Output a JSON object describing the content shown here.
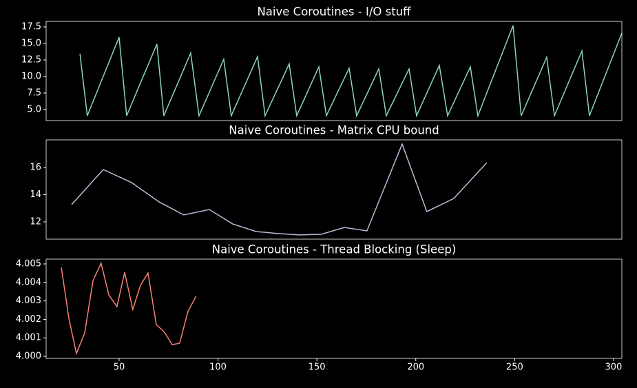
{
  "chart_data": [
    {
      "type": "line",
      "title": "Naive Coroutines - I/O stuff",
      "color": "#8dd3c7",
      "x": [
        30.2,
        33.9,
        50,
        53.8,
        69.1,
        72.6,
        86.2,
        90.4,
        102.9,
        106.7,
        120,
        123.8,
        136,
        139.8,
        151,
        154.8,
        166.3,
        170.1,
        181.3,
        185.1,
        196.6,
        200.4,
        211.9,
        216.1,
        227.6,
        231.4,
        249.2,
        253.3,
        266.2,
        270.1,
        284,
        287.8,
        304.2
      ],
      "values": [
        13.44,
        4.06,
        15.94,
        4.06,
        14.9,
        4.06,
        13.54,
        4.06,
        12.6,
        4.06,
        13.0,
        4.06,
        11.9,
        4.06,
        11.46,
        4.06,
        11.25,
        4.06,
        11.15,
        4.06,
        11.15,
        4.06,
        11.67,
        4.06,
        11.46,
        4.06,
        17.7,
        4.06,
        12.9,
        4.06,
        13.85,
        4.06,
        16.56
      ],
      "xlim": [
        13.1,
        304.2
      ],
      "ylim": [
        3.33,
        18.33
      ],
      "yticks": [
        {
          "value": 5,
          "label": "5.0"
        },
        {
          "value": 7.5,
          "label": "7.5"
        },
        {
          "value": 10,
          "label": "10.0"
        },
        {
          "value": 12.5,
          "label": "12.5"
        },
        {
          "value": 15,
          "label": "15.0"
        },
        {
          "value": 17.5,
          "label": "17.5"
        }
      ]
    },
    {
      "type": "line",
      "title": "Naive Coroutines - Matrix CPU bound",
      "color": "#bebada",
      "x": [
        26,
        42,
        56.3,
        70.2,
        82.7,
        95.6,
        107.4,
        119.3,
        130.4,
        141.2,
        152.4,
        163.9,
        175.3,
        193.1,
        205.6,
        219.2,
        235.9
      ],
      "values": [
        13.27,
        15.85,
        14.89,
        13.47,
        12.51,
        12.91,
        11.85,
        11.29,
        11.14,
        11.04,
        11.09,
        11.59,
        11.34,
        17.72,
        12.76,
        13.72,
        16.35
      ],
      "xlim": [
        13.1,
        304.2
      ],
      "ylim": [
        10.73,
        18.03
      ],
      "yticks": [
        12,
        14,
        16
      ]
    },
    {
      "type": "line",
      "title": "Naive Coroutines - Thread Blocking (Sleep)",
      "color": "#fa8072",
      "x": [
        20.8,
        24.6,
        28.4,
        32.6,
        36.8,
        40.9,
        44.8,
        48.9,
        52.8,
        56.9,
        60.8,
        64.6,
        68.8,
        72.9,
        76.8,
        80.6,
        84.8,
        88.9
      ],
      "values": [
        4.00481,
        4.00205,
        4.00015,
        4.00127,
        4.0041,
        4.00504,
        4.00332,
        4.00269,
        4.00455,
        4.00254,
        4.00384,
        4.00451,
        4.00172,
        4.00131,
        4.00063,
        4.00071,
        4.00243,
        4.00325
      ],
      "xlim": [
        13.1,
        304.2
      ],
      "ylim": [
        3.99989,
        4.00526
      ],
      "xticks": [
        50,
        100,
        150,
        200,
        250,
        300
      ],
      "yticks": [
        {
          "value": 4.0,
          "label": "4.000"
        },
        {
          "value": 4.001,
          "label": "4.001"
        },
        {
          "value": 4.002,
          "label": "4.002"
        },
        {
          "value": 4.003,
          "label": "4.003"
        },
        {
          "value": 4.004,
          "label": "4.004"
        },
        {
          "value": 4.005,
          "label": "4.005"
        }
      ]
    }
  ]
}
